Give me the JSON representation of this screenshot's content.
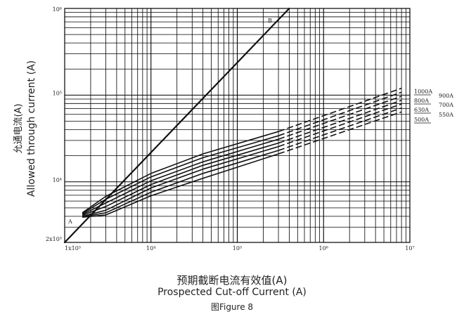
{
  "figure_caption": "图Figure 8",
  "chart_data": {
    "type": "line",
    "title": "",
    "xlabel_cn": "预期截断电流有效值(A)",
    "xlabel_en": "Prospected Cut-off Current (A)",
    "ylabel_cn": "允通电流(A)",
    "ylabel_en": "Allowed through current (A)",
    "xscale": "log",
    "yscale": "log",
    "xlim": [
      1000,
      10000000
    ],
    "ylim": [
      2000,
      1000000
    ],
    "grid": true,
    "x_tick_labels": [
      "1x10³",
      "10⁴",
      "10⁵",
      "10⁶",
      "10⁷"
    ],
    "y_tick_labels": [
      "2x10³",
      "10⁴",
      "10⁵",
      "10⁶"
    ],
    "annotations": {
      "A": "A",
      "B": "B"
    },
    "reference_line": {
      "label": "B",
      "x": [
        1000,
        400000
      ],
      "y": [
        2000,
        1000000
      ]
    },
    "series": [
      {
        "name": "1000A",
        "points": [
          [
            1600,
            4400
          ],
          [
            3000,
            6800
          ],
          [
            10000,
            12500
          ],
          [
            40000,
            21000
          ],
          [
            300000,
            38000
          ]
        ],
        "extension": [
          [
            300000,
            38000
          ],
          [
            8000000,
            120000
          ]
        ]
      },
      {
        "name": "900A",
        "points": [
          [
            1600,
            4300
          ],
          [
            3000,
            6300
          ],
          [
            10000,
            11400
          ],
          [
            40000,
            19000
          ],
          [
            300000,
            34000
          ]
        ],
        "extension": [
          [
            300000,
            34000
          ],
          [
            8000000,
            108000
          ]
        ]
      },
      {
        "name": "800A",
        "points": [
          [
            1600,
            4200
          ],
          [
            3000,
            5700
          ],
          [
            10000,
            10300
          ],
          [
            40000,
            17000
          ],
          [
            300000,
            31000
          ]
        ],
        "extension": [
          [
            300000,
            31000
          ],
          [
            8000000,
            97000
          ]
        ]
      },
      {
        "name": "700A",
        "points": [
          [
            1600,
            4100
          ],
          [
            3000,
            5200
          ],
          [
            10000,
            9300
          ],
          [
            40000,
            15500
          ],
          [
            300000,
            28000
          ]
        ],
        "extension": [
          [
            300000,
            28000
          ],
          [
            8000000,
            87000
          ]
        ]
      },
      {
        "name": "630A",
        "points": [
          [
            1600,
            4000
          ],
          [
            3000,
            4700
          ],
          [
            10000,
            8500
          ],
          [
            40000,
            14000
          ],
          [
            300000,
            25500
          ]
        ],
        "extension": [
          [
            300000,
            25500
          ],
          [
            8000000,
            79000
          ]
        ]
      },
      {
        "name": "550A",
        "points": [
          [
            1600,
            3950
          ],
          [
            3000,
            4400
          ],
          [
            10000,
            7600
          ],
          [
            40000,
            12500
          ],
          [
            300000,
            23000
          ]
        ],
        "extension": [
          [
            300000,
            23000
          ],
          [
            8000000,
            71000
          ]
        ]
      },
      {
        "name": "500A",
        "points": [
          [
            1600,
            3900
          ],
          [
            3000,
            4150
          ],
          [
            10000,
            6900
          ],
          [
            40000,
            11000
          ],
          [
            300000,
            21000
          ]
        ],
        "extension": [
          [
            300000,
            21000
          ],
          [
            8000000,
            64000
          ]
        ]
      }
    ],
    "legend_left": [
      "1000A",
      "800A",
      "630A",
      "500A"
    ],
    "legend_right": [
      "900A",
      "700A",
      "550A"
    ]
  }
}
